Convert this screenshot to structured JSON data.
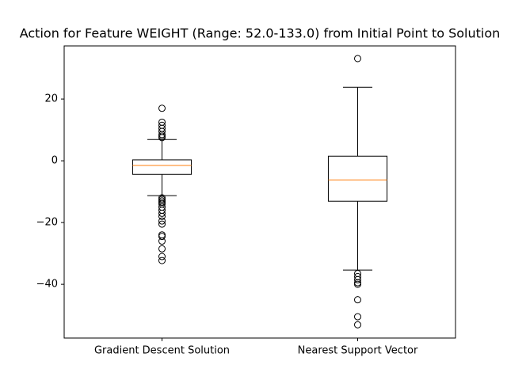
{
  "chart_data": {
    "type": "box",
    "title": "Action for Feature WEIGHT (Range: 52.0-133.0) from Initial Point to Solution",
    "categories": [
      "Gradient Descent Solution",
      "Nearest Support Vector"
    ],
    "boxes": [
      {
        "whislo": -11.3,
        "q1": -4.4,
        "med": -1.5,
        "q3": 0.3,
        "whishi": 6.9,
        "fliers": [
          17,
          12.5,
          11.5,
          10.5,
          9.5,
          8.5,
          8,
          7.5,
          -12,
          -12.5,
          -13,
          -13.5,
          -14,
          -15,
          -16,
          -17,
          -18,
          -19.5,
          -20.5,
          -24,
          -24.5,
          -26,
          -28.5,
          -31,
          -32.3
        ]
      },
      {
        "whislo": -35.4,
        "q1": -13.1,
        "med": -6.2,
        "q3": 1.5,
        "whishi": 23.8,
        "fliers": [
          33.1,
          -36.5,
          -37.5,
          -38.5,
          -39.5,
          -40,
          -45,
          -50.5,
          -53.1
        ]
      }
    ],
    "box_color": "#000000",
    "median_color": "#ff7f0e",
    "ylim": [
      -57.4,
      37.2
    ],
    "yticks": [
      {
        "value": -40,
        "label": "−40"
      },
      {
        "value": -20,
        "label": "−20"
      },
      0,
      20
    ]
  }
}
